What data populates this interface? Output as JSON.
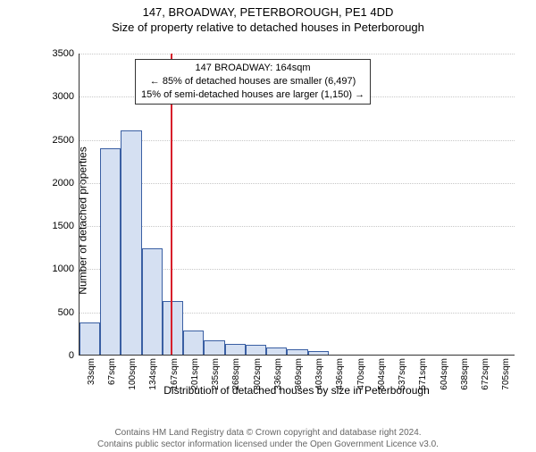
{
  "title_line1": "147, BROADWAY, PETERBOROUGH, PE1 4DD",
  "title_line2": "Size of property relative to detached houses in Peterborough",
  "chart": {
    "type": "histogram",
    "ylabel": "Number of detached properties",
    "xlabel": "Distribution of detached houses by size in Peterborough",
    "ylim": [
      0,
      3500
    ],
    "ytick_step": 500,
    "ytick_labels": [
      "0",
      "500",
      "1000",
      "1500",
      "2000",
      "2500",
      "3000",
      "3500"
    ],
    "x_categories": [
      "33sqm",
      "67sqm",
      "100sqm",
      "134sqm",
      "167sqm",
      "201sqm",
      "235sqm",
      "268sqm",
      "302sqm",
      "336sqm",
      "369sqm",
      "403sqm",
      "436sqm",
      "470sqm",
      "504sqm",
      "537sqm",
      "571sqm",
      "604sqm",
      "638sqm",
      "672sqm",
      "705sqm"
    ],
    "values": [
      370,
      2390,
      2600,
      1230,
      620,
      280,
      170,
      120,
      110,
      80,
      60,
      40,
      0,
      0,
      0,
      0,
      0,
      0,
      0,
      0,
      0
    ],
    "bar_fill": "#d5e0f2",
    "bar_stroke": "#3a5fa3",
    "bar_width_ratio": 1.0,
    "grid_color": "#c7c7c7",
    "background_color": "#ffffff",
    "marker_line": {
      "x_value_sqm": 164,
      "color": "#d71f2b"
    },
    "annotation": {
      "line1": "147 BROADWAY: 164sqm",
      "line2": "← 85% of detached houses are smaller (6,497)",
      "line3": "15% of semi-detached houses are larger (1,150) →",
      "border_color": "#333333",
      "bg_color": "#ffffff",
      "fontsize": 11
    },
    "title_fontsize": 13,
    "label_fontsize": 12,
    "tick_fontsize": 11
  },
  "footer": {
    "line1": "Contains HM Land Registry data © Crown copyright and database right 2024.",
    "line2": "Contains public sector information licensed under the Open Government Licence v3.0.",
    "color": "#666666"
  }
}
